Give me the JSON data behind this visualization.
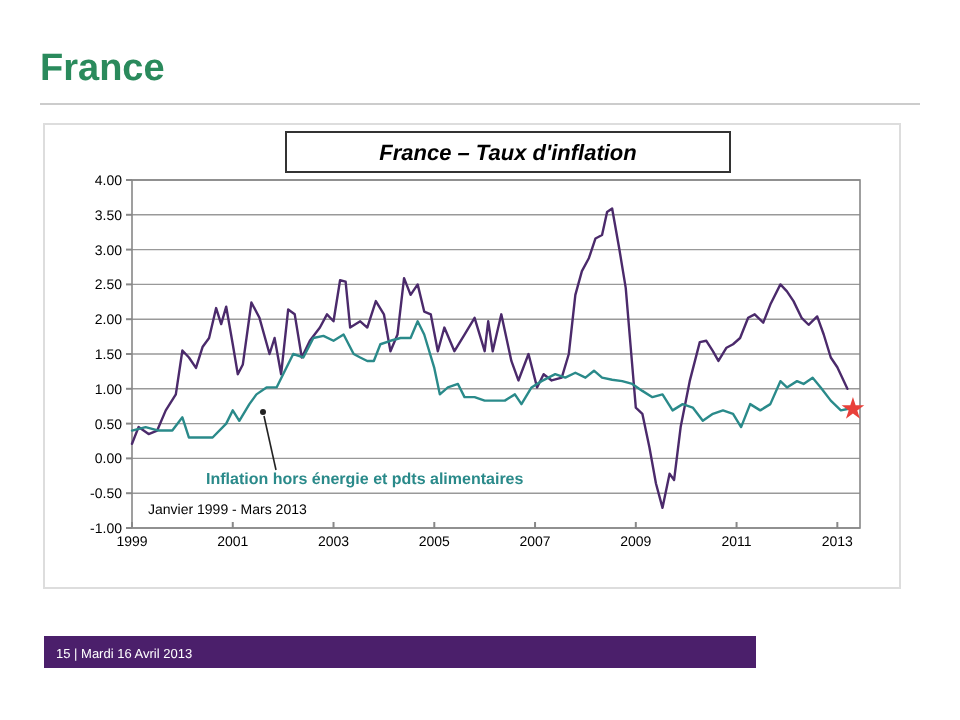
{
  "chart_data": {
    "type": "line",
    "title": "France",
    "subtitle": "France – Taux d'inflation",
    "annotations": [
      "Janvier 1999 - Mars 2013",
      "15 | Mardi 16 Avril 2013"
    ],
    "xlim": [
      1999,
      2013.45
    ],
    "xticks": [
      1999,
      2001,
      2003,
      2005,
      2007,
      2009,
      2011,
      2013
    ],
    "ylim": [
      -1,
      4
    ],
    "yticks": [
      {
        "value": -1,
        "label": "-1.00"
      },
      {
        "value": -0.5,
        "label": "-0.50"
      },
      {
        "value": 0,
        "label": "0.00"
      },
      {
        "value": 0.5,
        "label": "0.50"
      },
      {
        "value": 1,
        "label": "1.00"
      },
      {
        "value": 1.5,
        "label": "1.50"
      },
      {
        "value": 2,
        "label": "2.00"
      },
      {
        "value": 2.5,
        "label": "2.50"
      },
      {
        "value": 3,
        "label": "3.00"
      },
      {
        "value": 3.5,
        "label": "3.50"
      },
      {
        "value": 4,
        "label": "4.00"
      }
    ],
    "grid": "y",
    "legend": false,
    "marker": "none",
    "line_style": "solid",
    "series": [
      {
        "color": "#4b2a6b",
        "x": [
          1999.0,
          1999.13,
          1999.33,
          1999.5,
          1999.67,
          1999.87,
          2000.0,
          2000.13,
          2000.27,
          2000.4,
          2000.53,
          2000.67,
          2000.77,
          2000.87,
          2001.0,
          2001.1,
          2001.2,
          2001.37,
          2001.53,
          2001.73,
          2001.83,
          2001.96,
          2002.1,
          2002.23,
          2002.37,
          2002.53,
          2002.73,
          2002.87,
          2003.0,
          2003.13,
          2003.24,
          2003.33,
          2003.53,
          2003.67,
          2003.84,
          2004.0,
          2004.13,
          2004.27,
          2004.4,
          2004.53,
          2004.67,
          2004.8,
          2004.93,
          2005.07,
          2005.2,
          2005.4,
          2005.6,
          2005.8,
          2006.0,
          2006.07,
          2006.16,
          2006.33,
          2006.53,
          2006.67,
          2006.87,
          2007.04,
          2007.17,
          2007.33,
          2007.53,
          2007.67,
          2007.8,
          2007.93,
          2008.07,
          2008.2,
          2008.33,
          2008.43,
          2008.53,
          2008.67,
          2008.8,
          2008.91,
          2009.0,
          2009.13,
          2009.27,
          2009.4,
          2009.53,
          2009.67,
          2009.76,
          2009.89,
          2010.07,
          2010.27,
          2010.4,
          2010.53,
          2010.64,
          2010.8,
          2010.93,
          2011.07,
          2011.23,
          2011.36,
          2011.53,
          2011.67,
          2011.87,
          2012.0,
          2012.13,
          2012.29,
          2012.43,
          2012.6,
          2012.73,
          2012.87,
          2013.0,
          2013.2
        ],
        "values": [
          0.21,
          0.45,
          0.35,
          0.4,
          0.69,
          0.92,
          1.55,
          1.45,
          1.3,
          1.6,
          1.73,
          2.16,
          1.93,
          2.18,
          1.64,
          1.21,
          1.35,
          2.24,
          2.02,
          1.5,
          1.73,
          1.21,
          2.14,
          2.07,
          1.45,
          1.69,
          1.88,
          2.07,
          1.97,
          2.56,
          2.54,
          1.88,
          1.97,
          1.88,
          2.26,
          2.07,
          1.54,
          1.78,
          2.59,
          2.35,
          2.5,
          2.11,
          2.07,
          1.54,
          1.88,
          1.54,
          1.78,
          2.02,
          1.54,
          1.97,
          1.54,
          2.07,
          1.4,
          1.12,
          1.5,
          1.02,
          1.21,
          1.12,
          1.16,
          1.5,
          2.35,
          2.69,
          2.88,
          3.16,
          3.21,
          3.54,
          3.59,
          3.02,
          2.45,
          1.5,
          0.73,
          0.64,
          0.16,
          -0.36,
          -0.71,
          -0.22,
          -0.31,
          0.45,
          1.11,
          1.67,
          1.69,
          1.54,
          1.4,
          1.59,
          1.64,
          1.73,
          2.02,
          2.07,
          1.95,
          2.21,
          2.5,
          2.4,
          2.26,
          2.02,
          1.92,
          2.04,
          1.78,
          1.45,
          1.31,
          1.0
        ]
      },
      {
        "name": "Inflation hors énergie et pdts alimentaires",
        "color": "#2a8a8a",
        "x": [
          1999.0,
          1999.27,
          1999.53,
          1999.8,
          2000.0,
          2000.13,
          2000.33,
          2000.6,
          2000.87,
          2001.0,
          2001.13,
          2001.33,
          2001.47,
          2001.67,
          2001.87,
          2002.0,
          2002.2,
          2002.4,
          2002.6,
          2002.8,
          2003.0,
          2003.2,
          2003.4,
          2003.53,
          2003.67,
          2003.8,
          2003.93,
          2004.13,
          2004.33,
          2004.53,
          2004.67,
          2004.8,
          2005.0,
          2005.11,
          2005.27,
          2005.47,
          2005.6,
          2005.8,
          2006.0,
          2006.2,
          2006.4,
          2006.6,
          2006.73,
          2006.93,
          2007.13,
          2007.4,
          2007.6,
          2007.8,
          2008.0,
          2008.17,
          2008.33,
          2008.53,
          2008.73,
          2008.93,
          2009.13,
          2009.33,
          2009.53,
          2009.73,
          2009.93,
          2010.13,
          2010.33,
          2010.53,
          2010.73,
          2010.93,
          2011.09,
          2011.27,
          2011.47,
          2011.67,
          2011.87,
          2012.0,
          2012.2,
          2012.33,
          2012.51,
          2012.67,
          2012.87,
          2013.07,
          2013.2
        ],
        "values": [
          0.4,
          0.45,
          0.4,
          0.4,
          0.59,
          0.3,
          0.3,
          0.3,
          0.5,
          0.69,
          0.54,
          0.78,
          0.92,
          1.02,
          1.02,
          1.21,
          1.5,
          1.45,
          1.73,
          1.76,
          1.69,
          1.78,
          1.5,
          1.45,
          1.4,
          1.4,
          1.64,
          1.69,
          1.73,
          1.73,
          1.97,
          1.78,
          1.3,
          0.92,
          1.02,
          1.07,
          0.88,
          0.88,
          0.83,
          0.83,
          0.83,
          0.92,
          0.78,
          1.02,
          1.11,
          1.21,
          1.16,
          1.23,
          1.16,
          1.26,
          1.16,
          1.13,
          1.11,
          1.07,
          0.97,
          0.88,
          0.92,
          0.69,
          0.78,
          0.73,
          0.54,
          0.64,
          0.69,
          0.64,
          0.45,
          0.78,
          0.69,
          0.78,
          1.11,
          1.02,
          1.11,
          1.07,
          1.16,
          1.02,
          0.83,
          0.69,
          0.71
        ]
      },
      {
        "type": "scatter",
        "marker": "star",
        "color": "#e8403a",
        "x": [
          2013.31
        ],
        "values": [
          0.71
        ]
      }
    ]
  }
}
